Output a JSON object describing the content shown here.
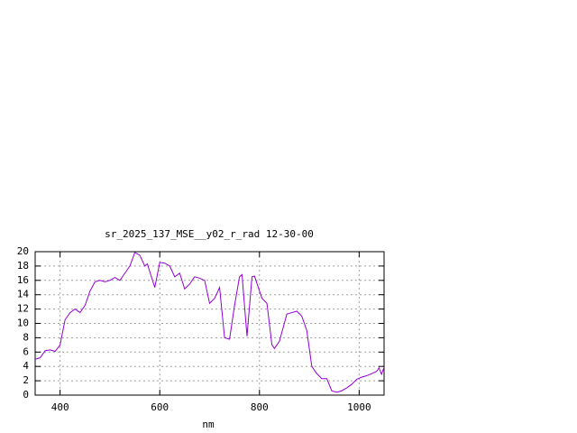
{
  "chart_data": {
    "type": "line",
    "title": "sr_2025_137_MSE__y02_r_rad 12-30-00",
    "x_label": "nm",
    "x": [
      350,
      360,
      370,
      380,
      390,
      400,
      410,
      420,
      430,
      440,
      450,
      460,
      470,
      480,
      490,
      500,
      510,
      520,
      530,
      540,
      550,
      560,
      570,
      575,
      590,
      600,
      610,
      620,
      630,
      640,
      650,
      660,
      670,
      680,
      690,
      700,
      710,
      720,
      730,
      740,
      750,
      760,
      765,
      775,
      785,
      790,
      805,
      815,
      825,
      830,
      840,
      855,
      865,
      875,
      885,
      895,
      905,
      915,
      925,
      935,
      945,
      955,
      965,
      975,
      985,
      995,
      1005,
      1015,
      1025,
      1035,
      1040,
      1045,
      1050
    ],
    "series": [
      {
        "color": "#9400d3",
        "values": [
          5.0,
          5.2,
          6.2,
          6.3,
          6.1,
          7.0,
          10.5,
          11.5,
          12.0,
          11.5,
          12.5,
          14.5,
          15.8,
          16.0,
          15.8,
          16.0,
          16.4,
          16.0,
          17.0,
          18.0,
          19.9,
          19.5,
          18.0,
          18.3,
          15.0,
          18.5,
          18.4,
          18.0,
          16.5,
          17.0,
          14.8,
          15.5,
          16.5,
          16.3,
          16.0,
          12.8,
          13.5,
          15.0,
          8.0,
          7.8,
          12.5,
          16.5,
          16.8,
          8.2,
          16.5,
          16.6,
          13.5,
          12.8,
          7.0,
          6.5,
          7.5,
          11.3,
          11.5,
          11.7,
          11.0,
          9.0,
          4.0,
          3.0,
          2.3,
          2.3,
          0.6,
          0.4,
          0.6,
          1.0,
          1.5,
          2.2,
          2.5,
          2.7,
          3.0,
          3.3,
          3.8,
          2.9,
          3.9
        ]
      }
    ],
    "xlim": [
      350,
      1050
    ],
    "xticks": [
      400,
      600,
      800,
      1000
    ],
    "ylim": [
      0,
      20
    ],
    "yticks": [
      0,
      2,
      4,
      6,
      8,
      10,
      12,
      14,
      16,
      18,
      20
    ],
    "grid": true
  }
}
